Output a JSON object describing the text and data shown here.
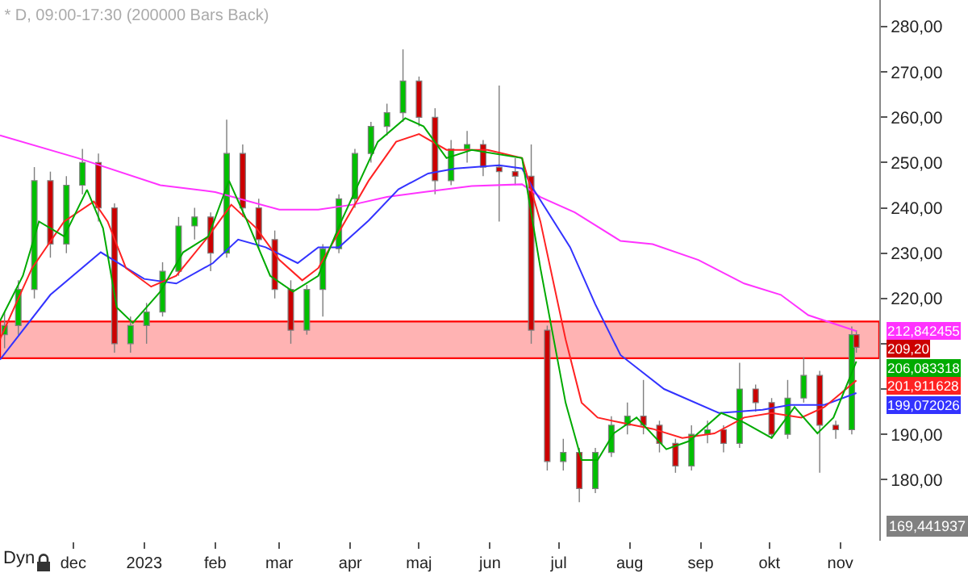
{
  "chart_data": {
    "type": "candlestick",
    "title": "* D, 09:00-17:30 (200000 Bars Back)",
    "x": [
      "2022-11-01",
      "2022-11-07",
      "2022-11-14",
      "2022-11-21",
      "2022-11-28",
      "2022-12-05",
      "2022-12-12",
      "2022-12-19",
      "2022-12-26",
      "2023-01-02",
      "2023-01-09",
      "2023-01-16",
      "2023-01-23",
      "2023-01-30",
      "2023-02-06",
      "2023-02-13",
      "2023-02-20",
      "2023-02-27",
      "2023-03-06",
      "2023-03-13",
      "2023-03-20",
      "2023-03-27",
      "2023-04-03",
      "2023-04-10",
      "2023-04-17",
      "2023-04-24",
      "2023-05-01",
      "2023-05-08",
      "2023-05-15",
      "2023-05-22",
      "2023-05-29",
      "2023-06-05",
      "2023-06-12",
      "2023-06-19",
      "2023-06-26",
      "2023-07-03",
      "2023-07-10",
      "2023-07-17",
      "2023-07-24",
      "2023-07-31",
      "2023-08-07",
      "2023-08-14",
      "2023-08-21",
      "2023-08-28",
      "2023-09-04",
      "2023-09-11",
      "2023-09-18",
      "2023-09-25",
      "2023-10-02",
      "2023-10-09",
      "2023-10-16",
      "2023-10-23",
      "2023-10-30",
      "2023-11-06",
      "2023-11-08"
    ],
    "ohlc": [
      [
        212,
        217,
        209,
        214
      ],
      [
        214,
        224,
        212,
        222
      ],
      [
        222,
        249,
        220,
        246
      ],
      [
        246,
        248,
        229,
        232
      ],
      [
        232,
        247,
        230,
        245
      ],
      [
        245,
        253,
        243,
        250
      ],
      [
        250,
        252,
        237,
        240
      ],
      [
        240,
        241,
        208,
        210
      ],
      [
        210,
        216,
        208,
        214
      ],
      [
        214,
        219,
        210,
        217
      ],
      [
        217,
        228,
        216,
        226
      ],
      [
        226,
        238,
        225,
        236
      ],
      [
        236,
        240,
        233,
        238
      ],
      [
        238,
        239,
        226,
        230
      ],
      [
        230,
        259.5,
        229,
        252
      ],
      [
        252,
        254,
        238,
        240
      ],
      [
        240,
        242,
        231,
        233
      ],
      [
        233,
        235,
        220,
        222
      ],
      [
        222,
        224,
        210,
        213
      ],
      [
        213,
        223,
        212,
        222
      ],
      [
        222,
        232,
        216,
        231
      ],
      [
        231,
        243,
        230,
        242
      ],
      [
        242,
        253,
        240,
        252
      ],
      [
        252,
        259,
        250,
        258
      ],
      [
        258,
        263,
        256,
        261
      ],
      [
        261,
        275,
        259,
        268
      ],
      [
        268,
        269,
        258,
        260
      ],
      [
        260,
        262,
        243,
        246
      ],
      [
        246,
        255,
        245,
        253
      ],
      [
        253,
        257,
        250,
        254
      ],
      [
        254,
        255,
        247,
        249
      ],
      [
        249,
        267,
        237,
        248
      ],
      [
        248,
        251,
        245,
        247
      ],
      [
        247,
        254,
        210,
        213
      ],
      [
        213,
        214,
        182,
        184
      ],
      [
        184,
        189,
        182,
        186
      ],
      [
        186,
        187,
        175,
        178
      ],
      [
        178,
        187,
        177,
        186
      ],
      [
        186,
        194,
        185,
        192
      ],
      [
        192,
        197,
        190,
        194
      ],
      [
        194,
        202,
        190,
        192
      ],
      [
        192,
        193,
        186,
        188
      ],
      [
        188,
        189,
        181.5,
        183
      ],
      [
        183,
        192,
        182,
        190
      ],
      [
        190,
        193,
        188,
        191
      ],
      [
        191,
        192,
        186,
        188
      ],
      [
        188,
        205.8,
        187,
        200
      ],
      [
        200,
        201,
        195,
        197
      ],
      [
        197,
        198,
        189,
        190
      ],
      [
        190,
        202,
        189,
        198
      ],
      [
        198,
        207,
        197,
        203
      ],
      [
        203,
        204,
        181.5,
        192
      ],
      [
        192,
        193,
        189,
        191
      ],
      [
        191,
        213.8,
        190,
        212
      ],
      [
        212,
        213,
        208,
        209.2
      ]
    ],
    "colors": [
      "#00c000",
      "#00c000",
      "#00c000",
      "#cc0000",
      "#00c000",
      "#00c000",
      "#cc0000",
      "#cc0000",
      "#00c000",
      "#00c000",
      "#00c000",
      "#00c000",
      "#00c000",
      "#cc0000",
      "#00c000",
      "#cc0000",
      "#cc0000",
      "#cc0000",
      "#cc0000",
      "#00c000",
      "#00c000",
      "#00c000",
      "#00c000",
      "#00c000",
      "#00c000",
      "#00c000",
      "#cc0000",
      "#cc0000",
      "#00c000",
      "#00c000",
      "#cc0000",
      "#cc0000",
      "#cc0000",
      "#cc0000",
      "#cc0000",
      "#00c000",
      "#cc0000",
      "#00c000",
      "#00c000",
      "#00c000",
      "#cc0000",
      "#cc0000",
      "#cc0000",
      "#00c000",
      "#00c000",
      "#cc0000",
      "#00c000",
      "#cc0000",
      "#cc0000",
      "#00c000",
      "#00c000",
      "#cc0000",
      "#cc0000",
      "#00c000",
      "#cc0000"
    ],
    "series": [
      {
        "type": "line",
        "color": "#ff33ff",
        "x": [
          "2022-10-30",
          "2022-12-03",
          "2023-01-08",
          "2023-02-01",
          "2023-03-01",
          "2023-03-18",
          "2023-04-02",
          "2023-04-17",
          "2023-05-03",
          "2023-05-24",
          "2023-06-15",
          "2023-06-23",
          "2023-07-08",
          "2023-07-28",
          "2023-08-11",
          "2023-08-31",
          "2023-09-20",
          "2023-10-06",
          "2023-10-18",
          "2023-11-08"
        ],
        "values": [
          256,
          251,
          245,
          243.5,
          239.6,
          239.6,
          240.7,
          242.4,
          243.5,
          244.8,
          245.2,
          242.4,
          239,
          232.7,
          232,
          228.5,
          223.3,
          220.8,
          216.3,
          212.8
        ]
      },
      {
        "type": "line",
        "color": "#3333ff",
        "x": [
          "2022-10-30",
          "2022-11-21",
          "2022-12-13",
          "2023-01-01",
          "2023-01-15",
          "2023-01-31",
          "2023-02-11",
          "2023-02-23",
          "2023-03-09",
          "2023-03-18",
          "2023-03-27",
          "2023-04-09",
          "2023-04-22",
          "2023-05-05",
          "2023-05-17",
          "2023-06-05",
          "2023-06-15",
          "2023-06-20",
          "2023-07-06",
          "2023-07-17",
          "2023-07-28",
          "2023-08-16",
          "2023-09-09",
          "2023-09-28",
          "2023-10-10",
          "2023-10-25",
          "2023-11-08"
        ],
        "values": [
          206.5,
          220.8,
          230.2,
          224.3,
          223.3,
          227.8,
          233,
          231.3,
          227.8,
          231.3,
          231.3,
          237.2,
          244.1,
          247.6,
          248.7,
          249.4,
          248.7,
          244.1,
          231.3,
          218.7,
          207.5,
          200,
          194.7,
          195.4,
          196.5,
          196.5,
          199.1
        ]
      },
      {
        "type": "line",
        "color": "#ff2222",
        "x": [
          "2022-10-30",
          "2022-11-13",
          "2022-11-27",
          "2022-12-10",
          "2022-12-16",
          "2022-12-24",
          "2023-01-04",
          "2023-01-15",
          "2023-01-29",
          "2023-02-08",
          "2023-02-19",
          "2023-03-01",
          "2023-03-11",
          "2023-03-18",
          "2023-03-28",
          "2023-04-09",
          "2023-04-21",
          "2023-05-01",
          "2023-05-13",
          "2023-05-31",
          "2023-06-15",
          "2023-06-23",
          "2023-07-04",
          "2023-07-11",
          "2023-07-18",
          "2023-07-28",
          "2023-08-11",
          "2023-08-24",
          "2023-09-07",
          "2023-09-20",
          "2023-10-02",
          "2023-10-15",
          "2023-10-25",
          "2023-11-08"
        ],
        "values": [
          211,
          226.7,
          237,
          241.4,
          237,
          226.7,
          222.6,
          225,
          233.7,
          240.7,
          235.5,
          228.5,
          224,
          226.7,
          235.5,
          246,
          254.6,
          256.3,
          252.8,
          252.8,
          251,
          237,
          211,
          197,
          193.7,
          192.6,
          191.2,
          189.2,
          190.2,
          193.7,
          194.7,
          193.7,
          196,
          201.9
        ]
      },
      {
        "type": "line",
        "color": "#00aa00",
        "x": [
          "2022-10-30",
          "2022-11-09",
          "2022-11-16",
          "2022-11-27",
          "2022-12-07",
          "2022-12-14",
          "2022-12-20",
          "2022-12-27",
          "2023-01-08",
          "2023-01-18",
          "2023-01-29",
          "2023-02-07",
          "2023-02-15",
          "2023-02-25",
          "2023-03-07",
          "2023-03-18",
          "2023-03-28",
          "2023-04-13",
          "2023-04-25",
          "2023-05-03",
          "2023-05-13",
          "2023-05-24",
          "2023-06-15",
          "2023-06-23",
          "2023-07-04",
          "2023-07-11",
          "2023-07-18",
          "2023-07-25",
          "2023-08-04",
          "2023-08-17",
          "2023-08-27",
          "2023-09-10",
          "2023-09-20",
          "2023-10-02",
          "2023-10-12",
          "2023-10-22",
          "2023-10-29",
          "2023-11-08"
        ],
        "values": [
          215,
          225,
          237,
          233.7,
          244,
          235.5,
          218,
          214.6,
          221.5,
          230.2,
          233.7,
          246,
          237,
          225,
          221.5,
          225,
          237,
          254.6,
          259.8,
          258,
          251,
          252.8,
          251,
          226.7,
          197,
          184.3,
          184.3,
          190.2,
          193.7,
          186.7,
          188.5,
          194.7,
          192.6,
          189.2,
          196,
          190.2,
          193.7,
          206.1
        ]
      }
    ],
    "bands": [
      {
        "axis": "y",
        "from": 206.8,
        "to": 214.9,
        "color": "#ffb3b3"
      }
    ],
    "annotations": [
      {
        "text": "212,842455",
        "x": "2023-11-08",
        "y": 212.842455
      },
      {
        "text": "209,20",
        "x": "2023-11-08",
        "y": 209.2
      },
      {
        "text": "206,083318",
        "x": "2023-11-08",
        "y": 206.083318
      },
      {
        "text": "201,911628",
        "x": "2023-11-08",
        "y": 201.911628
      },
      {
        "text": "199,072026",
        "x": "2023-11-08",
        "y": 199.072026
      },
      "169,441937",
      "Dyn"
    ],
    "xlim": [
      "2022-10-30",
      "2023-11-18"
    ],
    "xticks": [
      {
        "value": "2022-12-01",
        "label": "dec"
      },
      {
        "value": "2023-01-01",
        "label": "2023"
      },
      {
        "value": "2023-02-01",
        "label": "feb"
      },
      {
        "value": "2023-03-01",
        "label": "mar"
      },
      {
        "value": "2023-04-01",
        "label": "apr"
      },
      {
        "value": "2023-05-01",
        "label": "maj"
      },
      {
        "value": "2023-06-01",
        "label": "jun"
      },
      {
        "value": "2023-07-01",
        "label": "jul"
      },
      {
        "value": "2023-08-01",
        "label": "aug"
      },
      {
        "value": "2023-09-01",
        "label": "sep"
      },
      {
        "value": "2023-10-01",
        "label": "okt"
      },
      {
        "value": "2023-11-01",
        "label": "nov"
      }
    ],
    "ylim": [
      166.5,
      285.9
    ],
    "yticks": [
      {
        "value": 180,
        "label": "180,00"
      },
      {
        "value": 190,
        "label": "190,00"
      },
      {
        "value": 200,
        "label": null
      },
      {
        "value": 210,
        "label": null
      },
      {
        "value": 220,
        "label": "220,00"
      },
      {
        "value": 230,
        "label": "230,00"
      },
      {
        "value": 240,
        "label": "240,00"
      },
      {
        "value": 250,
        "label": "250,00"
      },
      {
        "value": 260,
        "label": "260,00"
      },
      {
        "value": 270,
        "label": "270,00"
      },
      {
        "value": 280,
        "label": "280,00"
      }
    ],
    "grid": false
  }
}
